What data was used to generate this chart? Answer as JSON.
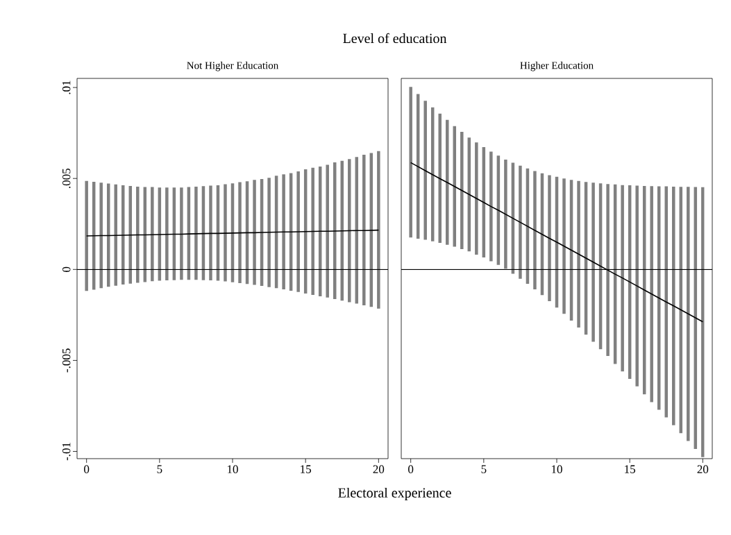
{
  "chart_data": [
    {
      "type": "line",
      "title": "Not Higher Education",
      "xlabel": "Electoral experience",
      "annotations": [
        "Level of education"
      ],
      "x": [
        0,
        0.5,
        1,
        1.5,
        2,
        2.5,
        3,
        3.5,
        4,
        4.5,
        5,
        5.5,
        6,
        6.5,
        7,
        7.5,
        8,
        8.5,
        9,
        9.5,
        10,
        10.5,
        11,
        11.5,
        12,
        12.5,
        13,
        13.5,
        14,
        14.5,
        15,
        15.5,
        16,
        16.5,
        17,
        17.5,
        18,
        18.5,
        19,
        19.5,
        20
      ],
      "series": [
        {
          "color": "#000000",
          "values": [
            0.00184,
            0.00185,
            0.00186,
            0.00186,
            0.00187,
            0.00188,
            0.00189,
            0.0019,
            0.0019,
            0.00191,
            0.00192,
            0.00193,
            0.00194,
            0.00194,
            0.00195,
            0.00196,
            0.00197,
            0.00198,
            0.00198,
            0.00199,
            0.002,
            0.00201,
            0.00202,
            0.00202,
            0.00203,
            0.00204,
            0.00205,
            0.00206,
            0.00206,
            0.00207,
            0.00208,
            0.00209,
            0.0021,
            0.0021,
            0.00211,
            0.00212,
            0.00213,
            0.00214,
            0.00214,
            0.00215,
            0.00216
          ],
          "errors": [
            [
              -0.00118,
              0.00486
            ],
            [
              -0.00111,
              0.00482
            ],
            [
              -0.00103,
              0.00477
            ],
            [
              -0.00095,
              0.00472
            ],
            [
              -0.00089,
              0.00467
            ],
            [
              -0.00083,
              0.00463
            ],
            [
              -0.00078,
              0.00459
            ],
            [
              -0.00073,
              0.00455
            ],
            [
              -0.00069,
              0.00453
            ],
            [
              -0.00065,
              0.00453
            ],
            [
              -0.00062,
              0.0045
            ],
            [
              -0.0006,
              0.0045
            ],
            [
              -0.00059,
              0.0045
            ],
            [
              -0.00057,
              0.0045
            ],
            [
              -0.00057,
              0.00453
            ],
            [
              -0.00057,
              0.00455
            ],
            [
              -0.00059,
              0.00458
            ],
            [
              -0.0006,
              0.00461
            ],
            [
              -0.00062,
              0.00463
            ],
            [
              -0.00066,
              0.00468
            ],
            [
              -0.0007,
              0.00473
            ],
            [
              -0.00075,
              0.0048
            ],
            [
              -0.0008,
              0.00485
            ],
            [
              -0.00085,
              0.00492
            ],
            [
              -0.0009,
              0.00497
            ],
            [
              -0.00097,
              0.00504
            ],
            [
              -0.00103,
              0.00515
            ],
            [
              -0.00109,
              0.00523
            ],
            [
              -0.00117,
              0.00529
            ],
            [
              -0.00124,
              0.00539
            ],
            [
              -0.00132,
              0.0055
            ],
            [
              -0.0014,
              0.00559
            ],
            [
              -0.00148,
              0.00566
            ],
            [
              -0.00154,
              0.00575
            ],
            [
              -0.00163,
              0.00588
            ],
            [
              -0.00171,
              0.00597
            ],
            [
              -0.0018,
              0.00607
            ],
            [
              -0.00188,
              0.00618
            ],
            [
              -0.00197,
              0.0063
            ],
            [
              -0.00206,
              0.0064
            ],
            [
              -0.00215,
              0.0065
            ]
          ]
        }
      ],
      "xlim": [
        -0.65,
        20.65
      ],
      "ylim": [
        -0.0104,
        0.0105
      ],
      "xticks": [
        0,
        5,
        10,
        15,
        20
      ],
      "yticks": [
        {
          "value": -0.01,
          "label": "-.01"
        },
        {
          "value": -0.005,
          "label": "-.005"
        },
        0,
        {
          "value": 0.005,
          "label": ".005"
        },
        {
          "value": 0.01,
          "label": ".01"
        }
      ],
      "ref_lines": [
        {
          "axis": "y",
          "value": 0
        }
      ]
    },
    {
      "type": "line",
      "title": "Higher Education",
      "x": [
        0,
        0.5,
        1,
        1.5,
        2,
        2.5,
        3,
        3.5,
        4,
        4.5,
        5,
        5.5,
        6,
        6.5,
        7,
        7.5,
        8,
        8.5,
        9,
        9.5,
        10,
        10.5,
        11,
        11.5,
        12,
        12.5,
        13,
        13.5,
        14,
        14.5,
        15,
        15.5,
        16,
        16.5,
        17,
        17.5,
        18,
        18.5,
        19,
        19.5,
        20
      ],
      "series": [
        {
          "color": "#000000",
          "values": [
            0.00587,
            0.00565,
            0.00543,
            0.00521,
            0.00499,
            0.00478,
            0.00456,
            0.00434,
            0.00412,
            0.0039,
            0.00368,
            0.00346,
            0.00325,
            0.00303,
            0.00281,
            0.00259,
            0.00237,
            0.00215,
            0.00193,
            0.00171,
            0.0015,
            0.00128,
            0.00106,
            0.00084,
            0.00062,
            0.0004,
            0.00018,
            -4e-05,
            -0.00026,
            -0.00047,
            -0.00069,
            -0.00091,
            -0.00113,
            -0.00135,
            -0.00157,
            -0.00179,
            -0.002,
            -0.00222,
            -0.00244,
            -0.00266,
            -0.00288
          ],
          "errors": [
            [
              0.00176,
              0.01003
            ],
            [
              0.00169,
              0.00964
            ],
            [
              0.00163,
              0.00927
            ],
            [
              0.00155,
              0.00891
            ],
            [
              0.00146,
              0.00856
            ],
            [
              0.00136,
              0.00822
            ],
            [
              0.00125,
              0.00788
            ],
            [
              0.00112,
              0.00756
            ],
            [
              0.00099,
              0.00725
            ],
            [
              0.00081,
              0.00698
            ],
            [
              0.00066,
              0.00672
            ],
            [
              0.00045,
              0.00648
            ],
            [
              0.00025,
              0.00626
            ],
            [
              4e-05,
              0.00604
            ],
            [
              -0.00024,
              0.00587
            ],
            [
              -0.00051,
              0.0057
            ],
            [
              -0.00079,
              0.00555
            ],
            [
              -0.00109,
              0.00541
            ],
            [
              -0.00141,
              0.00528
            ],
            [
              -0.00174,
              0.00518
            ],
            [
              -0.0021,
              0.00509
            ],
            [
              -0.00244,
              0.005
            ],
            [
              -0.00281,
              0.00492
            ],
            [
              -0.00319,
              0.00486
            ],
            [
              -0.00358,
              0.00481
            ],
            [
              -0.00397,
              0.00477
            ],
            [
              -0.00438,
              0.00473
            ],
            [
              -0.00476,
              0.00469
            ],
            [
              -0.00519,
              0.00467
            ],
            [
              -0.0056,
              0.00464
            ],
            [
              -0.00601,
              0.00463
            ],
            [
              -0.00642,
              0.00461
            ],
            [
              -0.00686,
              0.00459
            ],
            [
              -0.00729,
              0.00458
            ],
            [
              -0.00771,
              0.00457
            ],
            [
              -0.00813,
              0.00457
            ],
            [
              -0.00856,
              0.00455
            ],
            [
              -0.009,
              0.00454
            ],
            [
              -0.00943,
              0.00454
            ],
            [
              -0.00987,
              0.00453
            ],
            [
              -0.01031,
              0.00452
            ]
          ]
        }
      ],
      "xlim": [
        -0.65,
        20.65
      ],
      "ylim": [
        -0.0104,
        0.0105
      ],
      "xticks": [
        0,
        5,
        10,
        15,
        20
      ],
      "tick_labels": "x",
      "ref_lines": [
        {
          "axis": "y",
          "value": 0
        }
      ]
    }
  ]
}
